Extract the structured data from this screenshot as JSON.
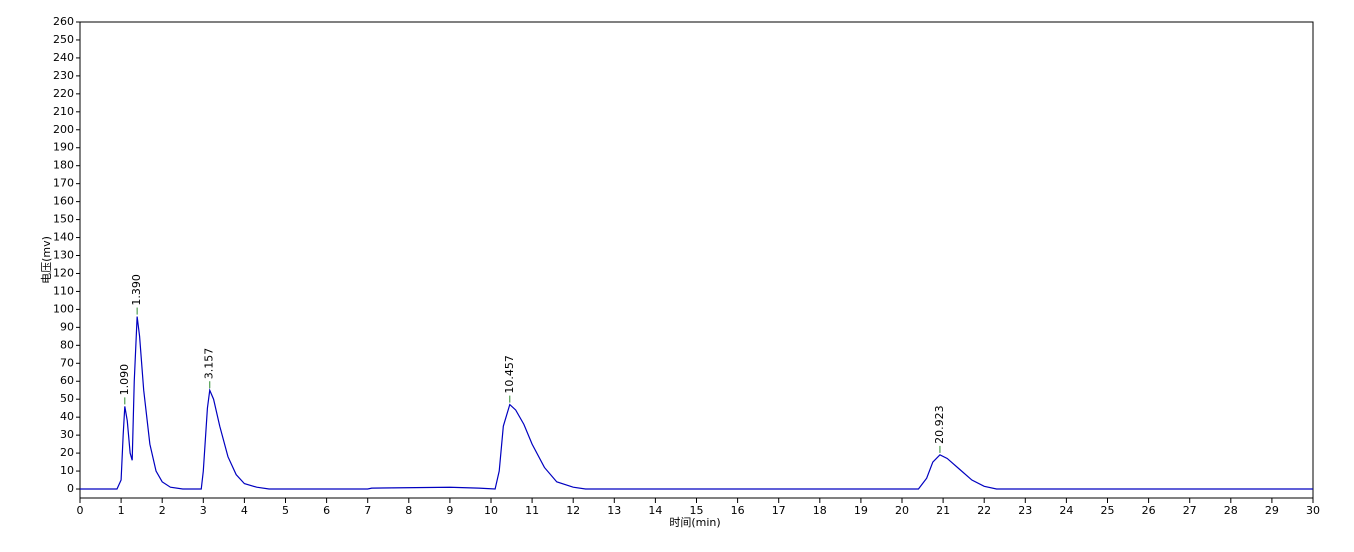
{
  "chart_data": {
    "type": "line",
    "xlabel": "时间(min)",
    "ylabel": "电压(mv)",
    "x": [
      0,
      0.9,
      1.0,
      1.05,
      1.09,
      1.15,
      1.22,
      1.27,
      1.32,
      1.39,
      1.45,
      1.55,
      1.7,
      1.85,
      2.0,
      2.2,
      2.5,
      2.95,
      3.0,
      3.1,
      3.157,
      3.25,
      3.4,
      3.6,
      3.8,
      4.0,
      4.3,
      4.6,
      7.0,
      7.1,
      9.0,
      9.7,
      10.1,
      10.2,
      10.3,
      10.457,
      10.6,
      10.8,
      11.0,
      11.3,
      11.6,
      12.0,
      12.3,
      20.4,
      20.6,
      20.75,
      20.923,
      21.1,
      21.4,
      21.7,
      22.0,
      22.3,
      30
    ],
    "values": [
      0,
      0,
      5,
      30,
      46,
      38,
      20,
      16,
      60,
      96,
      85,
      55,
      25,
      10,
      4,
      1,
      0,
      0,
      10,
      45,
      55,
      50,
      35,
      18,
      8,
      3,
      1,
      0,
      0,
      0.5,
      1,
      0.5,
      0,
      10,
      35,
      47,
      44,
      36,
      25,
      12,
      4,
      1,
      0,
      0,
      6,
      15,
      19,
      17,
      11,
      5,
      1.5,
      0,
      0
    ],
    "color": "#0000c0",
    "annotations": [
      {
        "x": 1.09,
        "y": 46,
        "label": "1.090"
      },
      {
        "x": 1.39,
        "y": 96,
        "label": "1.390"
      },
      {
        "x": 3.157,
        "y": 55,
        "label": "3.157"
      },
      {
        "x": 10.457,
        "y": 47,
        "label": "10.457"
      },
      {
        "x": 20.923,
        "y": 19,
        "label": "20.923"
      }
    ],
    "annotation_color": "#2e8b2e",
    "xlim": [
      0,
      30
    ],
    "xticks": [
      0,
      1,
      2,
      3,
      4,
      5,
      6,
      7,
      8,
      9,
      10,
      11,
      12,
      13,
      14,
      15,
      16,
      17,
      18,
      19,
      20,
      21,
      22,
      23,
      24,
      25,
      26,
      27,
      28,
      29,
      30
    ],
    "ylim": [
      -5,
      260
    ],
    "yticks": [
      0,
      10,
      20,
      30,
      40,
      50,
      60,
      70,
      80,
      90,
      100,
      110,
      120,
      130,
      140,
      150,
      160,
      170,
      180,
      190,
      200,
      210,
      220,
      230,
      240,
      250,
      260
    ]
  }
}
